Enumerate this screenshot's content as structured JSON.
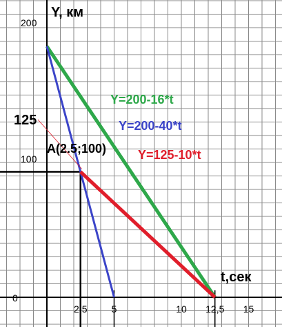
{
  "chart_data": {
    "type": "line",
    "ylabel": "Y, км",
    "xlabel": "t,сек",
    "xlim": [
      0,
      17
    ],
    "ylim": [
      0,
      215
    ],
    "grid": true,
    "y_tick_labels": [
      {
        "value": 0,
        "text": "0",
        "color": "#000000"
      },
      {
        "value": 100,
        "text": "100",
        "color": "#000000"
      },
      {
        "value": 125,
        "text": "125",
        "color": "#e01e2b"
      },
      {
        "value": 200,
        "text": "200",
        "color": "#000000"
      }
    ],
    "x_tick_labels": [
      {
        "value": 2.5,
        "text": "2,5"
      },
      {
        "value": 5,
        "text": "5"
      },
      {
        "value": 10,
        "text": "10"
      },
      {
        "value": 12.5,
        "text": "12,5"
      },
      {
        "value": 15,
        "text": "15"
      }
    ],
    "series": [
      {
        "name": "Y=200-16*t",
        "color": "#2ea84a",
        "x": [
          0,
          12.5
        ],
        "y": [
          200,
          0
        ]
      },
      {
        "name": "Y=200-40*t",
        "color": "#3b44c8",
        "x": [
          0,
          5
        ],
        "y": [
          200,
          0
        ]
      },
      {
        "name": "Y=125-10*t",
        "color": "#e01e2b",
        "x": [
          2.5,
          12.5
        ],
        "y": [
          100,
          0
        ]
      }
    ],
    "annotations": [
      {
        "text": "A(2.5;100)",
        "x": 2.5,
        "y": 100
      }
    ]
  }
}
